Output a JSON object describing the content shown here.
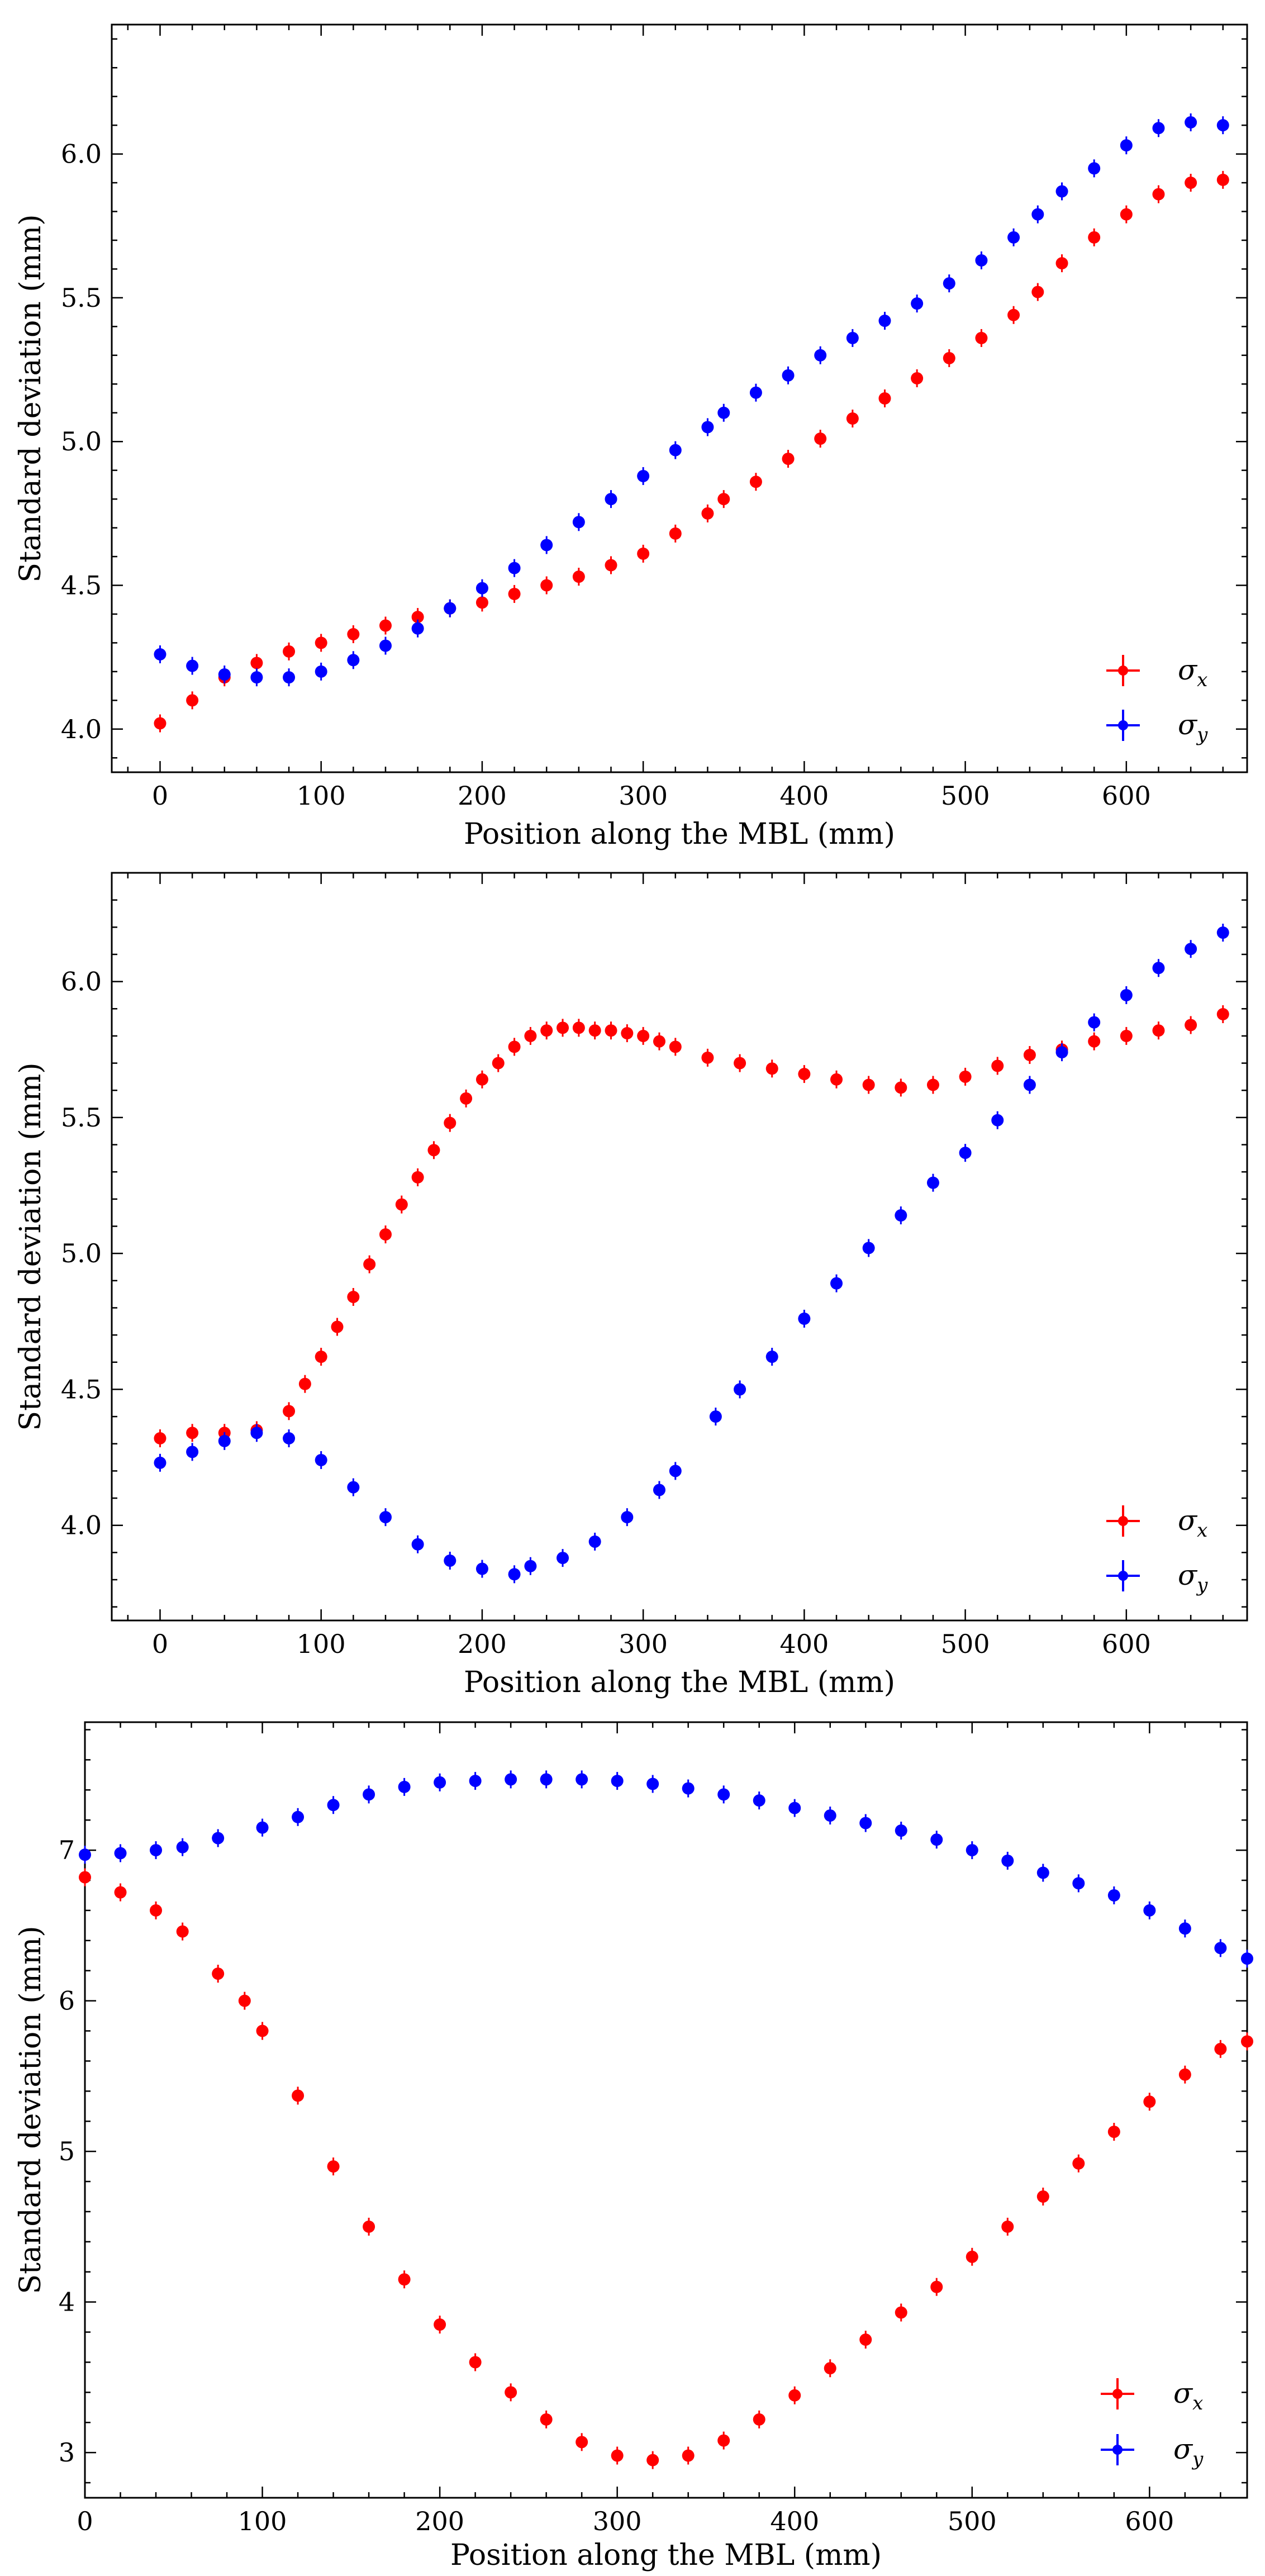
{
  "chart_data": [
    {
      "type": "scatter",
      "xlabel": "Position along the MBL (mm)",
      "ylabel": "Standard deviation (mm)",
      "xlim": [
        -30,
        675
      ],
      "ylim": [
        3.85,
        6.45
      ],
      "xticks": [
        0,
        100,
        200,
        300,
        400,
        500,
        600
      ],
      "xtick_labels": [
        "0",
        "100",
        "200",
        "300",
        "400",
        "500",
        "600"
      ],
      "yticks": [
        4.0,
        4.5,
        5.0,
        5.5,
        6.0
      ],
      "ytick_labels": [
        "4.0",
        "4.5",
        "5.0",
        "5.5",
        "6.0"
      ],
      "legend_position": "bottom-right",
      "series": [
        {
          "name": "σ_x",
          "label_main": "σ",
          "label_sub": "x",
          "color": "#ff0000",
          "x": [
            0,
            20,
            40,
            60,
            80,
            100,
            120,
            140,
            160,
            180,
            200,
            220,
            240,
            260,
            280,
            300,
            320,
            340,
            350,
            370,
            390,
            410,
            430,
            450,
            470,
            490,
            510,
            530,
            545,
            560,
            580,
            600,
            620,
            640,
            660
          ],
          "y": [
            4.02,
            4.1,
            4.18,
            4.23,
            4.27,
            4.3,
            4.33,
            4.36,
            4.39,
            4.42,
            4.44,
            4.47,
            4.5,
            4.53,
            4.57,
            4.61,
            4.68,
            4.75,
            4.8,
            4.86,
            4.94,
            5.01,
            5.08,
            5.15,
            5.22,
            5.29,
            5.36,
            5.44,
            5.52,
            5.62,
            5.71,
            5.79,
            5.86,
            5.9,
            5.91
          ]
        },
        {
          "name": "σ_y",
          "label_main": "σ",
          "label_sub": "y",
          "color": "#0000ff",
          "x": [
            0,
            20,
            40,
            60,
            80,
            100,
            120,
            140,
            160,
            180,
            200,
            220,
            240,
            260,
            280,
            300,
            320,
            340,
            350,
            370,
            390,
            410,
            430,
            450,
            470,
            490,
            510,
            530,
            545,
            560,
            580,
            600,
            620,
            640,
            660
          ],
          "y": [
            4.26,
            4.22,
            4.19,
            4.18,
            4.18,
            4.2,
            4.24,
            4.29,
            4.35,
            4.42,
            4.49,
            4.56,
            4.64,
            4.72,
            4.8,
            4.88,
            4.97,
            5.05,
            5.1,
            5.17,
            5.23,
            5.3,
            5.36,
            5.42,
            5.48,
            5.55,
            5.63,
            5.71,
            5.79,
            5.87,
            5.95,
            6.03,
            6.09,
            6.11,
            6.1
          ]
        }
      ]
    },
    {
      "type": "scatter",
      "xlabel": "Position along the MBL (mm)",
      "ylabel": "Standard deviation (mm)",
      "xlim": [
        -30,
        675
      ],
      "ylim": [
        3.65,
        6.4
      ],
      "xticks": [
        0,
        100,
        200,
        300,
        400,
        500,
        600
      ],
      "xtick_labels": [
        "0",
        "100",
        "200",
        "300",
        "400",
        "500",
        "600"
      ],
      "yticks": [
        4.0,
        4.5,
        5.0,
        5.5,
        6.0
      ],
      "ytick_labels": [
        "4.0",
        "4.5",
        "5.0",
        "5.5",
        "6.0"
      ],
      "legend_position": "bottom-right",
      "series": [
        {
          "name": "σ_x",
          "label_main": "σ",
          "label_sub": "x",
          "color": "#ff0000",
          "x": [
            0,
            20,
            40,
            60,
            80,
            90,
            100,
            110,
            120,
            130,
            140,
            150,
            160,
            170,
            180,
            190,
            200,
            210,
            220,
            230,
            240,
            250,
            260,
            270,
            280,
            290,
            300,
            310,
            320,
            340,
            360,
            380,
            400,
            420,
            440,
            460,
            480,
            500,
            520,
            540,
            560,
            580,
            600,
            620,
            640,
            660
          ],
          "y": [
            4.32,
            4.34,
            4.34,
            4.35,
            4.42,
            4.52,
            4.62,
            4.73,
            4.84,
            4.96,
            5.07,
            5.18,
            5.28,
            5.38,
            5.48,
            5.57,
            5.64,
            5.7,
            5.76,
            5.8,
            5.82,
            5.83,
            5.83,
            5.82,
            5.82,
            5.81,
            5.8,
            5.78,
            5.76,
            5.72,
            5.7,
            5.68,
            5.66,
            5.64,
            5.62,
            5.61,
            5.62,
            5.65,
            5.69,
            5.73,
            5.75,
            5.78,
            5.8,
            5.82,
            5.84,
            5.88
          ]
        },
        {
          "name": "σ_y",
          "label_main": "σ",
          "label_sub": "y",
          "color": "#0000ff",
          "x": [
            0,
            20,
            40,
            60,
            80,
            100,
            120,
            140,
            160,
            180,
            200,
            220,
            230,
            250,
            270,
            290,
            310,
            320,
            345,
            360,
            380,
            400,
            420,
            440,
            460,
            480,
            500,
            520,
            540,
            560,
            580,
            600,
            620,
            640,
            660
          ],
          "y": [
            4.23,
            4.27,
            4.31,
            4.34,
            4.32,
            4.24,
            4.14,
            4.03,
            3.93,
            3.87,
            3.84,
            3.82,
            3.85,
            3.88,
            3.94,
            4.03,
            4.13,
            4.2,
            4.4,
            4.5,
            4.62,
            4.76,
            4.89,
            5.02,
            5.14,
            5.26,
            5.37,
            5.49,
            5.62,
            5.74,
            5.85,
            5.95,
            6.05,
            6.12,
            6.18
          ]
        }
      ]
    },
    {
      "type": "scatter",
      "xlabel": "Position along the MBL (mm)",
      "ylabel": "Standard deviation (mm)",
      "xlim": [
        0,
        655
      ],
      "ylim": [
        2.7,
        7.85
      ],
      "xticks": [
        0,
        100,
        200,
        300,
        400,
        500,
        600
      ],
      "xtick_labels": [
        "0",
        "100",
        "200",
        "300",
        "400",
        "500",
        "600"
      ],
      "yticks": [
        3,
        4,
        5,
        6,
        7
      ],
      "ytick_labels": [
        "3",
        "4",
        "5",
        "6",
        "7"
      ],
      "legend_position": "bottom-right",
      "series": [
        {
          "name": "σ_x",
          "label_main": "σ",
          "label_sub": "x",
          "color": "#ff0000",
          "x": [
            0,
            20,
            40,
            55,
            75,
            90,
            100,
            120,
            140,
            160,
            180,
            200,
            220,
            240,
            260,
            280,
            300,
            320,
            340,
            360,
            380,
            400,
            420,
            440,
            460,
            480,
            500,
            520,
            540,
            560,
            580,
            600,
            620,
            640,
            655
          ],
          "y": [
            6.82,
            6.72,
            6.6,
            6.46,
            6.18,
            6.0,
            5.8,
            5.37,
            4.9,
            4.5,
            4.15,
            3.85,
            3.6,
            3.4,
            3.22,
            3.07,
            2.98,
            2.95,
            2.98,
            3.08,
            3.22,
            3.38,
            3.56,
            3.75,
            3.93,
            4.1,
            4.3,
            4.5,
            4.7,
            4.92,
            5.13,
            5.33,
            5.51,
            5.68,
            5.73
          ]
        },
        {
          "name": "σ_y",
          "label_main": "σ",
          "label_sub": "y",
          "color": "#0000ff",
          "x": [
            0,
            20,
            40,
            55,
            75,
            100,
            120,
            140,
            160,
            180,
            200,
            220,
            240,
            260,
            280,
            300,
            320,
            340,
            360,
            380,
            400,
            420,
            440,
            460,
            480,
            500,
            520,
            540,
            560,
            580,
            600,
            620,
            640,
            655
          ],
          "y": [
            6.97,
            6.98,
            7.0,
            7.02,
            7.08,
            7.15,
            7.22,
            7.3,
            7.37,
            7.42,
            7.45,
            7.46,
            7.47,
            7.47,
            7.47,
            7.46,
            7.44,
            7.41,
            7.37,
            7.33,
            7.28,
            7.23,
            7.18,
            7.13,
            7.07,
            7.0,
            6.93,
            6.85,
            6.78,
            6.7,
            6.6,
            6.48,
            6.35,
            6.28
          ]
        }
      ]
    }
  ]
}
